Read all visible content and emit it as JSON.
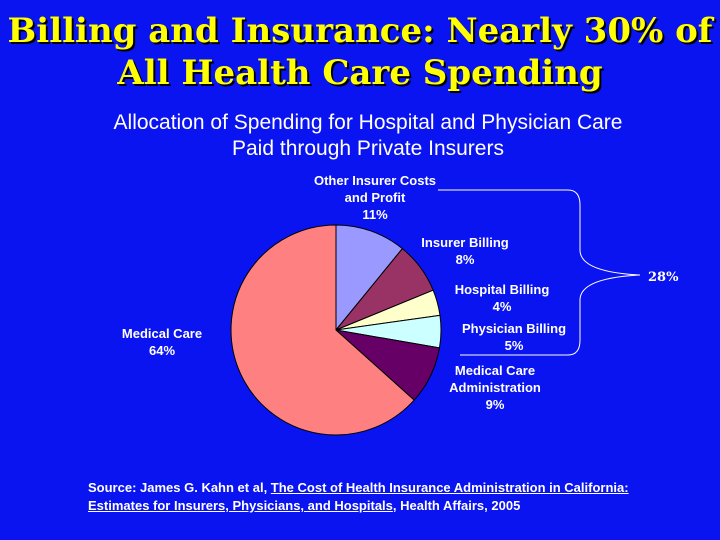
{
  "slide": {
    "title": "Billing and Insurance: Nearly 30% of\nAll Health Care Spending"
  },
  "chart_data": {
    "type": "pie",
    "title": "Allocation of Spending for Hospital and Physician Care\nPaid through Private Insurers",
    "slices": [
      {
        "name": "Other Insurer Costs and Profit",
        "label_lines": [
          "Other Insurer Costs",
          "and Profit"
        ],
        "value": 11,
        "value_label": "11%",
        "color": "#9999ff"
      },
      {
        "name": "Insurer Billing",
        "label_lines": [
          "Insurer Billing"
        ],
        "value": 8,
        "value_label": "8%",
        "color": "#993366"
      },
      {
        "name": "Hospital Billing",
        "label_lines": [
          "Hospital Billing"
        ],
        "value": 4,
        "value_label": "4%",
        "color": "#ffffcc"
      },
      {
        "name": "Physician Billing",
        "label_lines": [
          "Physician Billing"
        ],
        "value": 5,
        "value_label": "5%",
        "color": "#ccffff"
      },
      {
        "name": "Medical Care Administration",
        "label_lines": [
          "Medical Care",
          "Administration"
        ],
        "value": 9,
        "value_label": "9%",
        "color": "#660066"
      },
      {
        "name": "Medical Care",
        "label_lines": [
          "Medical Care"
        ],
        "value": 64,
        "value_label": "64%",
        "color": "#ff8080"
      }
    ],
    "bracket_total_label": "28%"
  },
  "source": {
    "prefix": "Source: James G. Kahn et al, ",
    "title_line1": "The Cost of Health Insurance Administration in California:",
    "title_line2": "Estimates for Insurers, Physicians, and Hospitals",
    "suffix": ", Health Affairs,  2005"
  }
}
